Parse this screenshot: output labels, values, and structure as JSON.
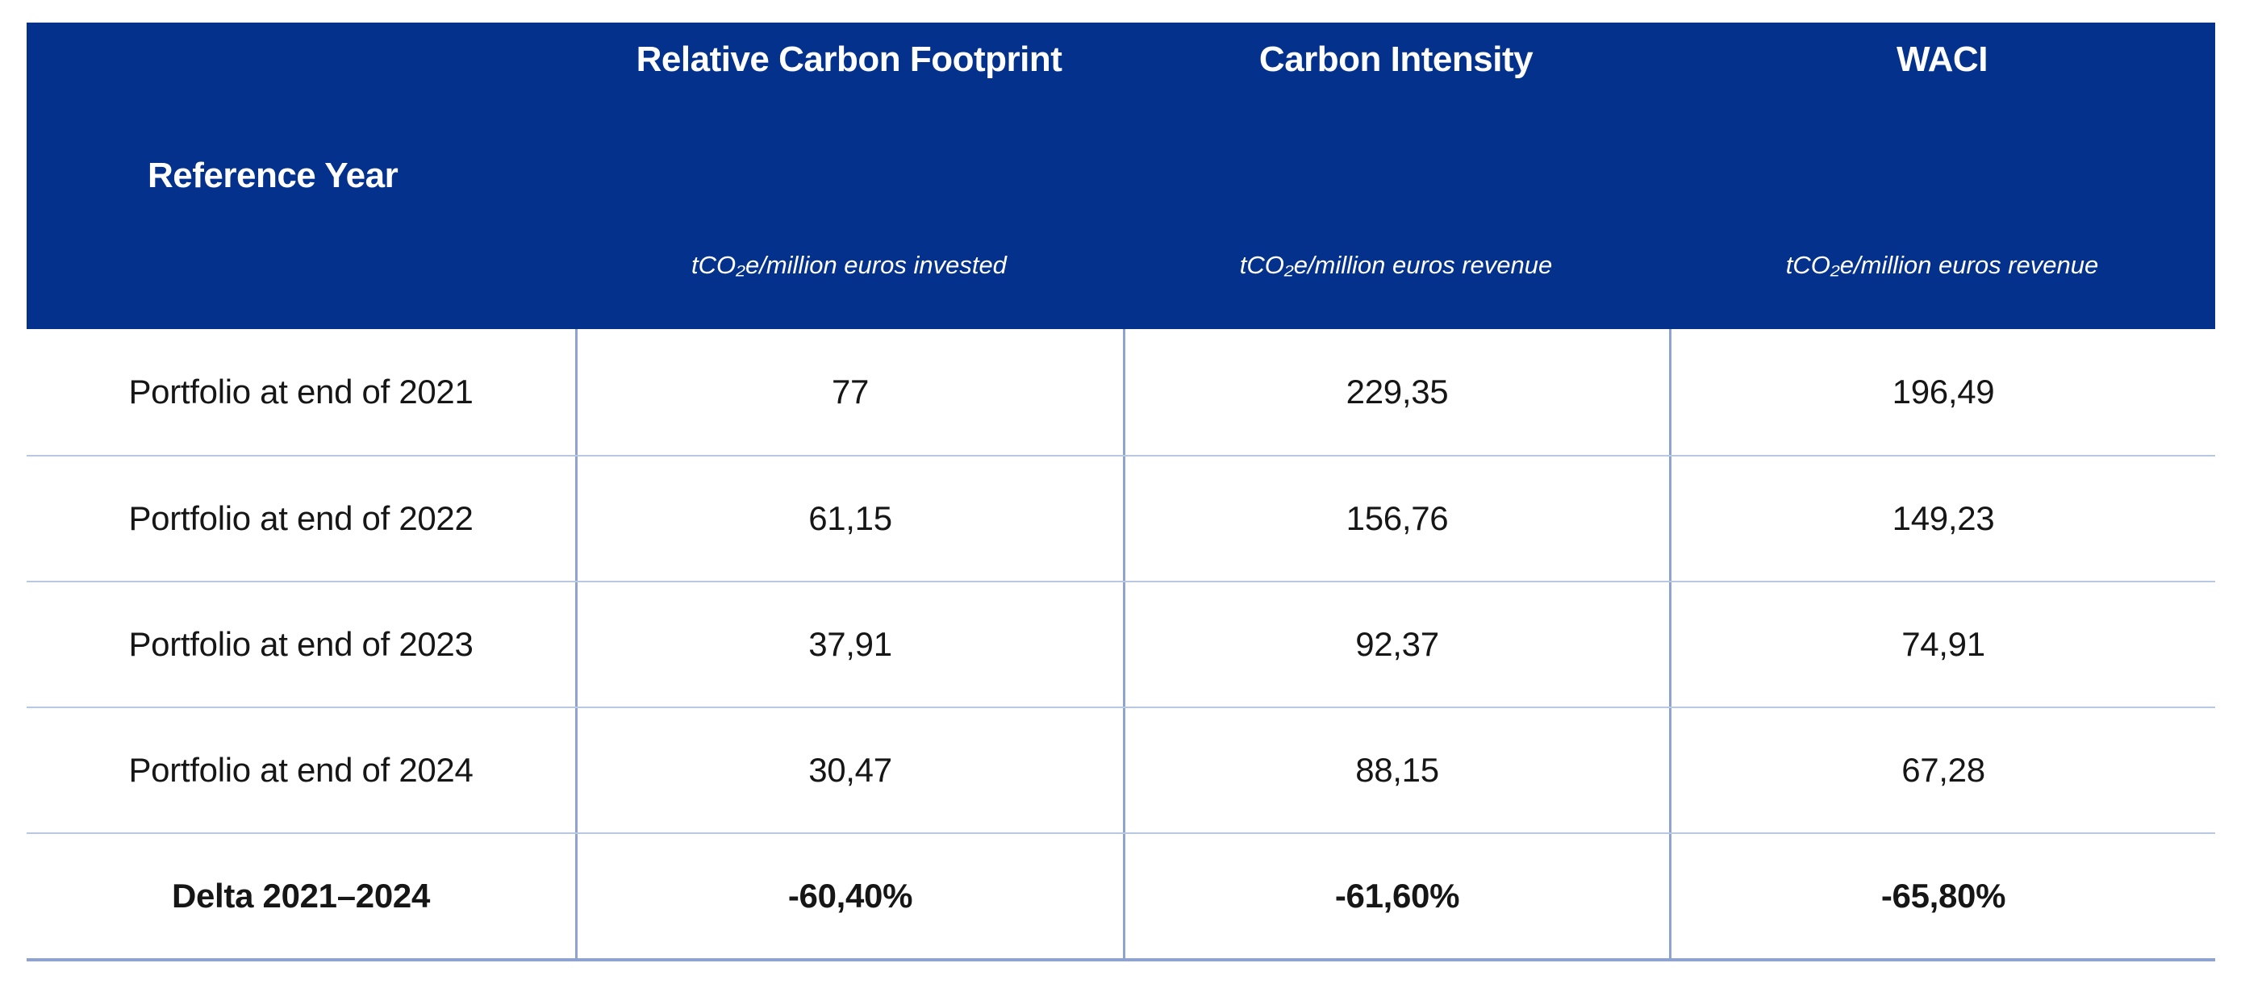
{
  "chart_data": {
    "type": "table",
    "columns": [
      "Reference Year",
      "Relative Carbon Footprint (tCO₂e/million euros invested)",
      "Carbon Intensity (tCO₂e/million euros revenue)",
      "WACI (tCO₂e/million euros revenue)"
    ],
    "rows": [
      [
        "Portfolio at end of 2021",
        77,
        229.35,
        196.49
      ],
      [
        "Portfolio at end of 2022",
        61.15,
        156.76,
        149.23
      ],
      [
        "Portfolio at end of 2023",
        37.91,
        92.37,
        74.91
      ],
      [
        "Portfolio at end of 2024",
        30.47,
        88.15,
        67.28
      ],
      [
        "Delta 2021–2024",
        "-60,40%",
        "-61,60%",
        "-65,80%"
      ]
    ],
    "layout_hints": {
      "header_background": "#04318C",
      "grid": "light-blue dividers",
      "decimal_separator": ","
    }
  },
  "header": {
    "row_label": "Reference Year",
    "columns": [
      {
        "title": "Relative Carbon Footprint",
        "unit": "tCO₂e/million euros invested"
      },
      {
        "title": "Carbon Intensity",
        "unit": "tCO₂e/million euros revenue"
      },
      {
        "title": "WACI",
        "unit": "tCO₂e/million euros revenue"
      }
    ]
  },
  "rows": [
    {
      "label": "Portfolio at end of 2021",
      "values": [
        "77",
        "229,35",
        "196,49"
      ]
    },
    {
      "label": "Portfolio at end of 2022",
      "values": [
        "61,15",
        "156,76",
        "149,23"
      ]
    },
    {
      "label": "Portfolio at end of 2023",
      "values": [
        "37,91",
        "92,37",
        "74,91"
      ]
    },
    {
      "label": "Portfolio at end of 2024",
      "values": [
        "30,47",
        "88,15",
        "67,28"
      ]
    }
  ],
  "delta_row": {
    "label": "Delta 2021–2024",
    "values": [
      "-60,40%",
      "-61,60%",
      "-65,80%"
    ]
  },
  "colors": {
    "header_bg": "#04318C",
    "header_text": "#FFFFFF",
    "body_text": "#161616",
    "divider": "#8EA3CF",
    "row_separator": "#B9C8E2",
    "bottom_border": "#8EA3CF"
  }
}
